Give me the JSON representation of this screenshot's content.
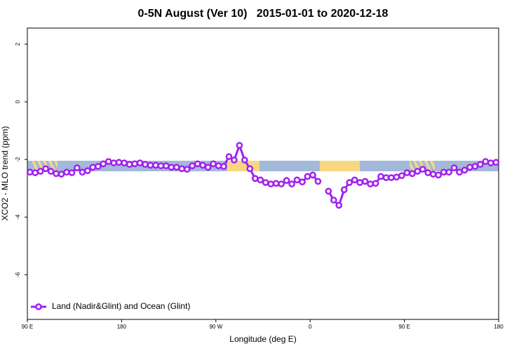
{
  "chart_data": {
    "type": "line",
    "title": "0-5N August (Ver 10)   2015-01-01 to 2020-12-18",
    "xlabel": "Longitude (deg E)",
    "ylabel": "XCO2 - MLO trend (ppm)",
    "xlim": [
      90,
      540
    ],
    "xticks": [
      {
        "value": 90,
        "label": "90 E"
      },
      180,
      {
        "value": 270,
        "label": "90 W"
      },
      {
        "value": 360,
        "label": "0"
      },
      {
        "value": 450,
        "label": "90 E"
      },
      {
        "value": 540,
        "label": "180"
      }
    ],
    "ylim": [
      -7.55,
      2.56
    ],
    "yticks": [
      -6,
      -4,
      -2,
      0,
      2
    ],
    "legend": "bottom-left",
    "series": [
      {
        "name": "Land (Nadir&Glint) and Ocean (Glint)",
        "color": "#a020f0",
        "x": [
          92.5,
          97.5,
          102.5,
          107.5,
          112.5,
          117.5,
          122.5,
          127.5,
          132.5,
          137.5,
          142.5,
          147.5,
          152.5,
          157.5,
          162.5,
          167.5,
          172.5,
          177.5,
          182.5,
          187.5,
          192.5,
          197.5,
          202.5,
          207.5,
          212.5,
          217.5,
          222.5,
          227.5,
          232.5,
          237.5,
          242.5,
          247.5,
          252.5,
          257.5,
          262.5,
          267.5,
          272.5,
          277.5,
          282.5,
          287.5,
          292.5,
          297.5,
          302.5,
          307.5,
          312.5,
          317.5,
          322.5,
          327.5,
          332.5,
          337.5,
          342.5,
          347.5,
          352.5,
          357.5,
          362.5,
          367.5,
          372.5,
          377.5,
          382.5,
          387.5,
          392.5,
          397.5,
          402.5,
          407.5,
          412.5,
          417.5,
          422.5,
          427.5,
          432.5,
          437.5,
          442.5,
          447.5,
          452.5,
          457.5,
          462.5,
          467.5,
          472.5,
          477.5,
          482.5,
          487.5,
          492.5,
          497.5,
          502.5,
          507.5,
          512.5,
          517.5,
          522.5,
          527.5,
          532.5,
          537.5
        ],
        "values": [
          -2.44,
          -2.46,
          -2.41,
          -2.32,
          -2.41,
          -2.49,
          -2.51,
          -2.44,
          -2.46,
          -2.29,
          -2.44,
          -2.39,
          -2.27,
          -2.24,
          -2.15,
          -2.07,
          -2.12,
          -2.1,
          -2.12,
          -2.17,
          -2.15,
          -2.12,
          -2.17,
          -2.2,
          -2.2,
          -2.22,
          -2.22,
          -2.27,
          -2.27,
          -2.32,
          -2.34,
          -2.22,
          -2.15,
          -2.2,
          -2.27,
          -2.15,
          -2.22,
          -2.24,
          -1.9,
          -2.02,
          -1.51,
          -2.02,
          -2.32,
          -2.66,
          -2.71,
          -2.8,
          -2.85,
          -2.83,
          -2.85,
          -2.73,
          -2.85,
          -2.71,
          -2.78,
          -2.59,
          -2.54,
          -2.76,
          null,
          -3.1,
          -3.41,
          -3.59,
          -3.05,
          -2.8,
          -2.71,
          -2.8,
          -2.76,
          -2.85,
          -2.83,
          -2.59,
          -2.63,
          -2.63,
          -2.61,
          -2.56,
          -2.46,
          -2.49,
          -2.41,
          -2.34,
          -2.46,
          -2.51,
          -2.54,
          -2.44,
          -2.44,
          -2.29,
          -2.44,
          -2.37,
          -2.27,
          -2.24,
          -2.17,
          -2.07,
          -2.12,
          -2.1
        ]
      }
    ]
  }
}
